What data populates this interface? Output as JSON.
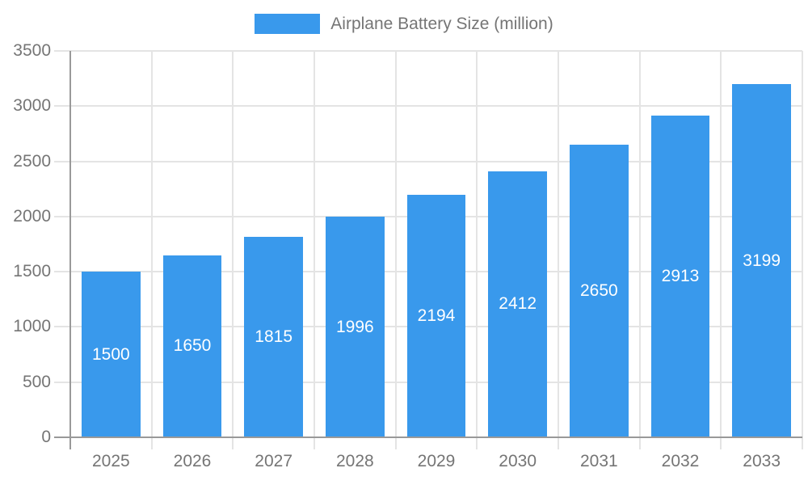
{
  "chart_data": {
    "type": "bar",
    "title": "",
    "legend": "Airplane Battery Size (million)",
    "legend_position": "top-center",
    "categories": [
      "2025",
      "2026",
      "2027",
      "2028",
      "2029",
      "2030",
      "2031",
      "2032",
      "2033"
    ],
    "values": [
      1500,
      1650,
      1815,
      1996,
      2194,
      2412,
      2650,
      2913,
      3199
    ],
    "value_labels_shown": true,
    "xlabel": "",
    "ylabel": "",
    "ylim": [
      0,
      3500
    ],
    "yticks": [
      0,
      500,
      1000,
      1500,
      2000,
      2500,
      3000,
      3500
    ],
    "grid": true,
    "colors": {
      "bar": "#3999EC",
      "grid": "#E4E4E4",
      "axis": "#999999",
      "tick_text": "#757575",
      "value_label": "#FFFFFF",
      "background": "#FFFFFF"
    }
  }
}
